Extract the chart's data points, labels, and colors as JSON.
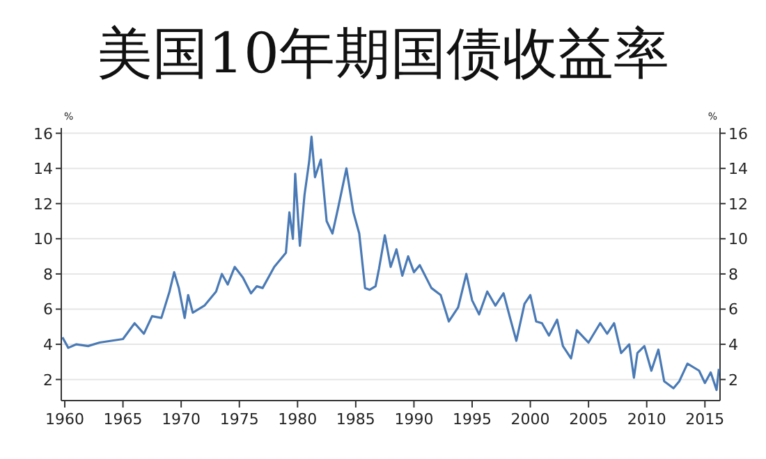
{
  "chart_data": {
    "type": "line",
    "title": "美国10年期国债收益率",
    "ylabel": "%",
    "y2label": "%",
    "x": [
      1959.8,
      1960.3,
      1961,
      1962,
      1963,
      1964,
      1965,
      1966,
      1966.8,
      1967.5,
      1968.3,
      1969,
      1969.4,
      1969.8,
      1970.3,
      1970.6,
      1971,
      1972,
      1973,
      1973.5,
      1974,
      1974.6,
      1975.3,
      1976,
      1976.5,
      1977,
      1978,
      1979,
      1979.3,
      1979.6,
      1979.8,
      1980.2,
      1980.6,
      1981,
      1981.2,
      1981.5,
      1982,
      1982.5,
      1983,
      1983.5,
      1984.2,
      1984.8,
      1985.3,
      1985.8,
      1986.2,
      1986.7,
      1987,
      1987.5,
      1988,
      1988.5,
      1989,
      1989.5,
      1990,
      1990.5,
      1991.5,
      1992.3,
      1993,
      1993.8,
      1994.5,
      1995,
      1995.6,
      1996.3,
      1997,
      1997.7,
      1998.3,
      1998.8,
      1999.5,
      2000,
      2000.5,
      2001,
      2001.6,
      2002.3,
      2002.8,
      2003.5,
      2004,
      2005,
      2006,
      2006.6,
      2007.2,
      2007.8,
      2008.5,
      2008.9,
      2009.2,
      2009.8,
      2010.4,
      2011,
      2011.5,
      2012.3,
      2012.8,
      2013.5,
      2014.5,
      2015,
      2015.5,
      2016,
      2016.2
    ],
    "series": [
      {
        "color": "#4a7ab5",
        "values": [
          4.4,
          3.8,
          4.0,
          3.9,
          4.1,
          4.2,
          4.3,
          5.2,
          4.6,
          5.6,
          5.5,
          7.0,
          8.1,
          7.2,
          5.5,
          6.8,
          5.8,
          6.2,
          7.0,
          8.0,
          7.4,
          8.4,
          7.8,
          6.9,
          7.3,
          7.2,
          8.4,
          9.2,
          11.5,
          10.0,
          13.7,
          9.6,
          12.5,
          14.4,
          15.8,
          13.5,
          14.5,
          11.0,
          10.3,
          11.8,
          14.0,
          11.5,
          10.3,
          7.2,
          7.1,
          7.3,
          8.3,
          10.2,
          8.4,
          9.4,
          7.9,
          9.0,
          8.1,
          8.5,
          7.2,
          6.8,
          5.3,
          6.1,
          8.0,
          6.5,
          5.7,
          7.0,
          6.2,
          6.9,
          5.4,
          4.2,
          6.3,
          6.8,
          5.3,
          5.2,
          4.5,
          5.4,
          3.9,
          3.2,
          4.8,
          4.1,
          5.2,
          4.6,
          5.2,
          3.5,
          4.0,
          2.1,
          3.5,
          3.9,
          2.5,
          3.7,
          1.9,
          1.5,
          1.9,
          2.9,
          2.5,
          1.8,
          2.4,
          1.4,
          2.6
        ]
      }
    ],
    "xlim": [
      1959.7,
      2016.3
    ],
    "xticks": [
      1960,
      1965,
      1970,
      1975,
      1980,
      1985,
      1990,
      1995,
      2000,
      2005,
      2010,
      2015
    ],
    "ylim": [
      0.8,
      16.3
    ],
    "yticks": [
      2,
      4,
      6,
      8,
      10,
      12,
      14,
      16
    ],
    "y2lim": [
      0.8,
      16.3
    ],
    "y2ticks": [
      2,
      4,
      6,
      8,
      10,
      12,
      14,
      16
    ],
    "grid": "y",
    "marker": "none",
    "line_style": "solid"
  }
}
